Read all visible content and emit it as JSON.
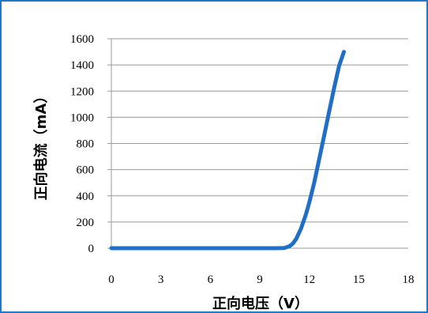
{
  "chart_data": {
    "type": "line",
    "title": "",
    "xlabel": "正向电压（V）",
    "ylabel": "正向电流（mA）",
    "xlim": [
      0,
      18
    ],
    "ylim": [
      0,
      1600
    ],
    "xticks": [
      0,
      3,
      6,
      9,
      12,
      15,
      18
    ],
    "yticks": [
      0,
      200,
      400,
      600,
      800,
      1000,
      1200,
      1400,
      1600
    ],
    "grid": {
      "horizontal": true,
      "vertical": false
    },
    "legend": "none",
    "series": [
      {
        "color": "#1f6fc6",
        "x": [
          0,
          2,
          4,
          6,
          8,
          9,
          10,
          10.5,
          10.8,
          11,
          11.2,
          11.5,
          11.8,
          12,
          12.3,
          12.6,
          12.9,
          13.2,
          13.5,
          13.8,
          14.1
        ],
        "y": [
          0,
          0,
          0,
          0,
          0,
          0,
          0,
          2,
          15,
          35,
          70,
          150,
          260,
          350,
          500,
          680,
          860,
          1040,
          1220,
          1390,
          1500
        ]
      }
    ]
  },
  "colors": {
    "frame": "#1f7ac9",
    "grid": "#9a9a9a",
    "line": "#1f6fc6"
  }
}
